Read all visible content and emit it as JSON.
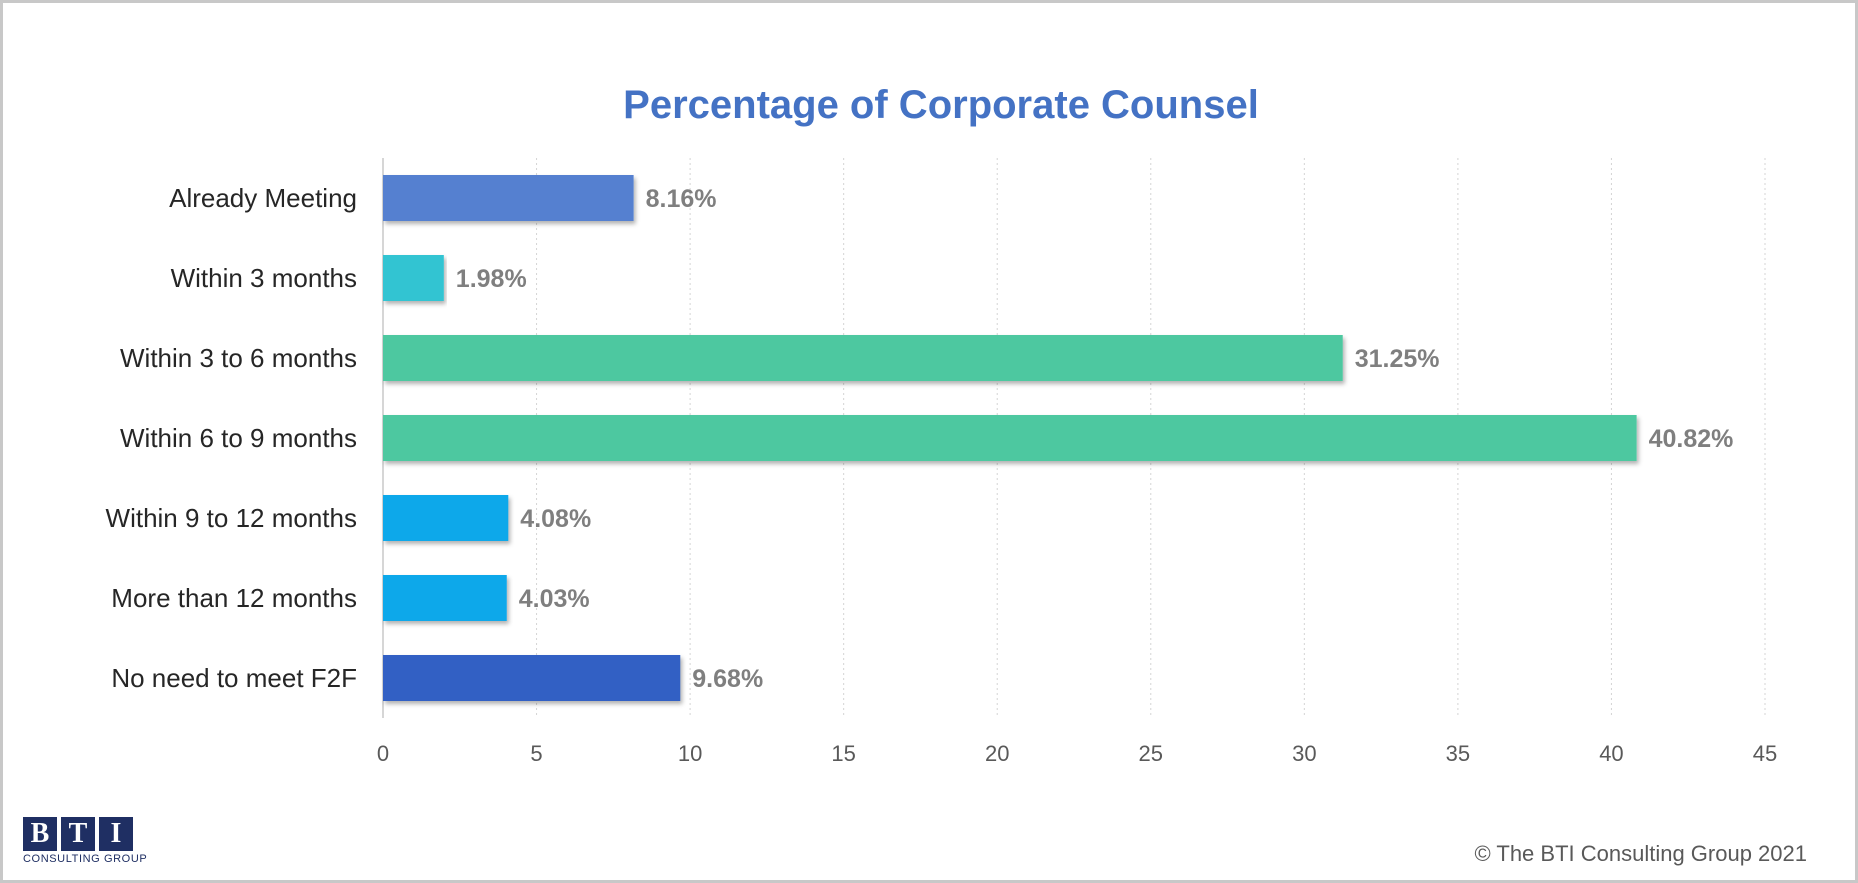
{
  "chart_data": {
    "type": "bar",
    "orientation": "horizontal",
    "title": "Percentage of Corporate Counsel",
    "categories": [
      "Already Meeting",
      "Within 3 months",
      "Within 3 to 6 months",
      "Within 6 to 9 months",
      "Within 9 to 12 months",
      "More than 12 months",
      "No need to meet F2F"
    ],
    "values": [
      8.16,
      1.98,
      31.25,
      40.82,
      4.08,
      4.03,
      9.68
    ],
    "value_labels": [
      "8.16%",
      "1.98%",
      "31.25%",
      "40.82%",
      "4.08%",
      "4.03%",
      "9.68%"
    ],
    "colors": [
      "#5580d0",
      "#30c4d2",
      "#4dc8a0",
      "#4dc8a0",
      "#0ea8ea",
      "#0ea8ea",
      "#3060c4"
    ],
    "xlim": [
      0,
      45
    ],
    "xticks": [
      0,
      5,
      10,
      15,
      20,
      25,
      30,
      35,
      40,
      45
    ],
    "grid": "vertical dotted",
    "legend": "none"
  },
  "logo": {
    "letters": [
      "B",
      "T",
      "I"
    ],
    "subtitle": "CONSULTING GROUP"
  },
  "copyright": "© The BTI Consulting Group 2021"
}
